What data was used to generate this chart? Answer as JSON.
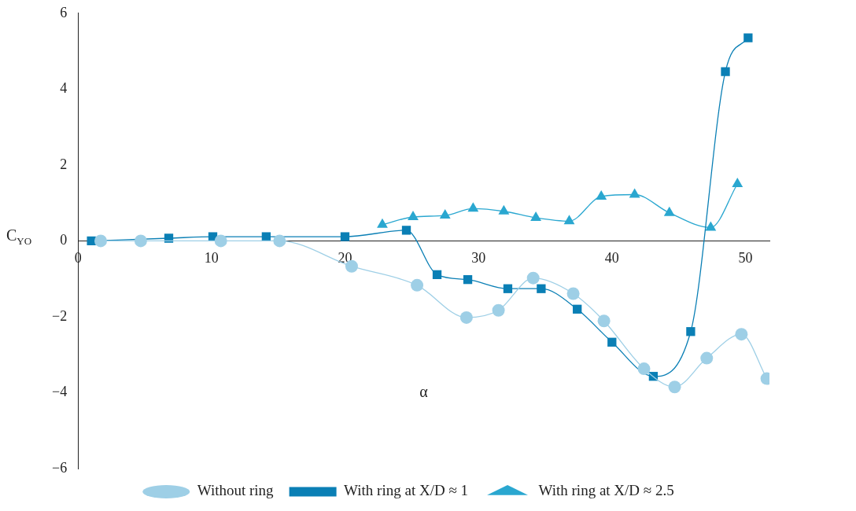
{
  "chart_data": {
    "type": "line",
    "xlabel": "α",
    "ylabel": "C$_{YO}$",
    "xlim": [
      0,
      51.8
    ],
    "ylim": [
      -6,
      6
    ],
    "xticks": [
      0,
      10,
      20,
      30,
      40,
      50
    ],
    "yticks": [
      {
        "value": -6,
        "label": "−6"
      },
      {
        "value": -4,
        "label": "−4"
      },
      {
        "value": -2,
        "label": "−2"
      },
      0,
      2,
      4,
      6
    ],
    "grid": false,
    "legend": "bottom",
    "series": [
      {
        "name": "Without ring",
        "color": "#9ecfe6",
        "marker": "circle",
        "x": [
          1.7,
          4.7,
          10.7,
          15.1,
          20.5,
          25.4,
          29.1,
          31.5,
          34.1,
          37.1,
          39.4,
          42.4,
          44.7,
          47.1,
          49.7,
          51.6
        ],
        "values": [
          0,
          0,
          0,
          0,
          -0.67,
          -1.17,
          -2.02,
          -1.83,
          -0.98,
          -1.39,
          -2.11,
          -3.37,
          -3.85,
          -3.09,
          -2.46,
          -3.63
        ]
      },
      {
        "name": "With ring at X/D ≈ 1",
        "color": "#0a7fb5",
        "marker": "square",
        "x": [
          1.0,
          6.8,
          10.1,
          14.1,
          20.0,
          24.6,
          26.9,
          29.2,
          32.2,
          34.7,
          37.4,
          40.0,
          43.1,
          45.9,
          48.5,
          50.2
        ],
        "values": [
          0,
          0.07,
          0.11,
          0.11,
          0.11,
          0.28,
          -0.89,
          -1.02,
          -1.26,
          -1.26,
          -1.8,
          -2.67,
          -3.57,
          -2.39,
          4.46,
          5.35
        ]
      },
      {
        "name": "With ring at X/D ≈ 2.5",
        "color": "#2aa7d0",
        "marker": "triangle",
        "x": [
          22.8,
          25.1,
          27.5,
          29.6,
          31.9,
          34.3,
          36.8,
          39.2,
          41.7,
          44.3,
          47.4,
          49.4
        ],
        "values": [
          0.43,
          0.63,
          0.67,
          0.85,
          0.78,
          0.61,
          0.52,
          1.17,
          1.22,
          0.74,
          0.35,
          1.5
        ]
      }
    ]
  }
}
